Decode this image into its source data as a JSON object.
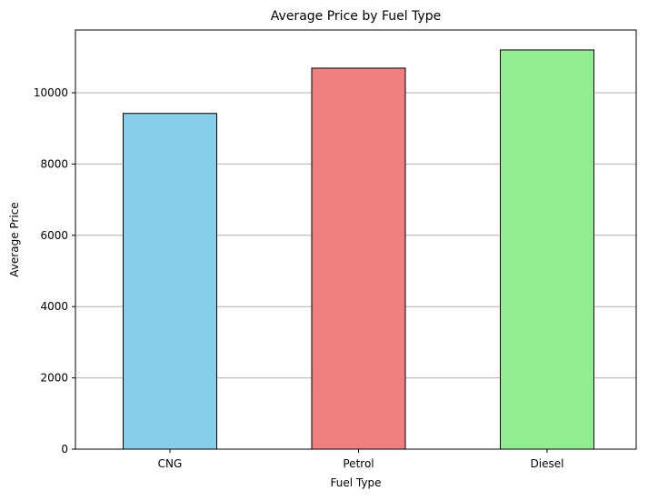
{
  "chart_data": {
    "type": "bar",
    "title": "Average Price by Fuel Type",
    "xlabel": "Fuel Type",
    "ylabel": "Average Price",
    "categories": [
      "CNG",
      "Petrol",
      "Diesel"
    ],
    "values": [
      9420,
      10690,
      11200
    ],
    "colors": [
      "#87ceeb",
      "#f08080",
      "#90ee90"
    ],
    "edge_color": "#000000",
    "ylim": [
      0,
      11760
    ],
    "yticks": [
      0,
      2000,
      4000,
      6000,
      8000,
      10000
    ],
    "grid": "y",
    "grid_color": "#b0b0b0",
    "legend": "none"
  }
}
